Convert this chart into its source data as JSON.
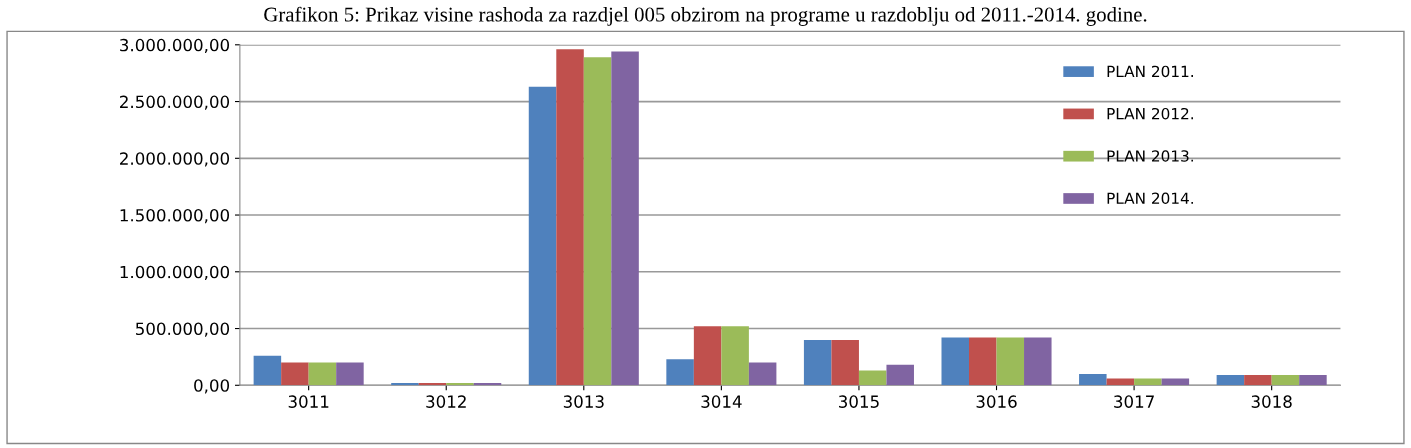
{
  "chart_data": {
    "type": "bar",
    "title": "Grafikon 5: Prikaz visine rashoda za razdjel 005 obzirom na programe u razdoblju od 2011.-2014. godine.",
    "categories": [
      "3011",
      "3012",
      "3013",
      "3014",
      "3015",
      "3016",
      "3017",
      "3018"
    ],
    "series": [
      {
        "name": "PLAN 2011.",
        "color": "#4f81bd",
        "values": [
          260000,
          20000,
          2630000,
          230000,
          400000,
          420000,
          100000,
          90000
        ]
      },
      {
        "name": "PLAN 2012.",
        "color": "#c0504d",
        "values": [
          200000,
          20000,
          2960000,
          520000,
          400000,
          420000,
          60000,
          90000
        ]
      },
      {
        "name": "PLAN 2013.",
        "color": "#9bbb59",
        "values": [
          200000,
          20000,
          2890000,
          520000,
          130000,
          420000,
          60000,
          90000
        ]
      },
      {
        "name": "PLAN 2014.",
        "color": "#8064a2",
        "values": [
          200000,
          20000,
          2940000,
          200000,
          180000,
          420000,
          60000,
          90000
        ]
      }
    ],
    "ylim": [
      0,
      3000000
    ],
    "yticks": [
      {
        "value": 0,
        "label": "0,00"
      },
      {
        "value": 500000,
        "label": "500.000,00"
      },
      {
        "value": 1000000,
        "label": "1.000.000,00"
      },
      {
        "value": 1500000,
        "label": "1.500.000,00"
      },
      {
        "value": 2000000,
        "label": "2.000.000,00"
      },
      {
        "value": 2500000,
        "label": "2.500.000,00"
      },
      {
        "value": 3000000,
        "label": "3.000.000,00"
      }
    ],
    "grid": "y",
    "legend": "top right"
  }
}
